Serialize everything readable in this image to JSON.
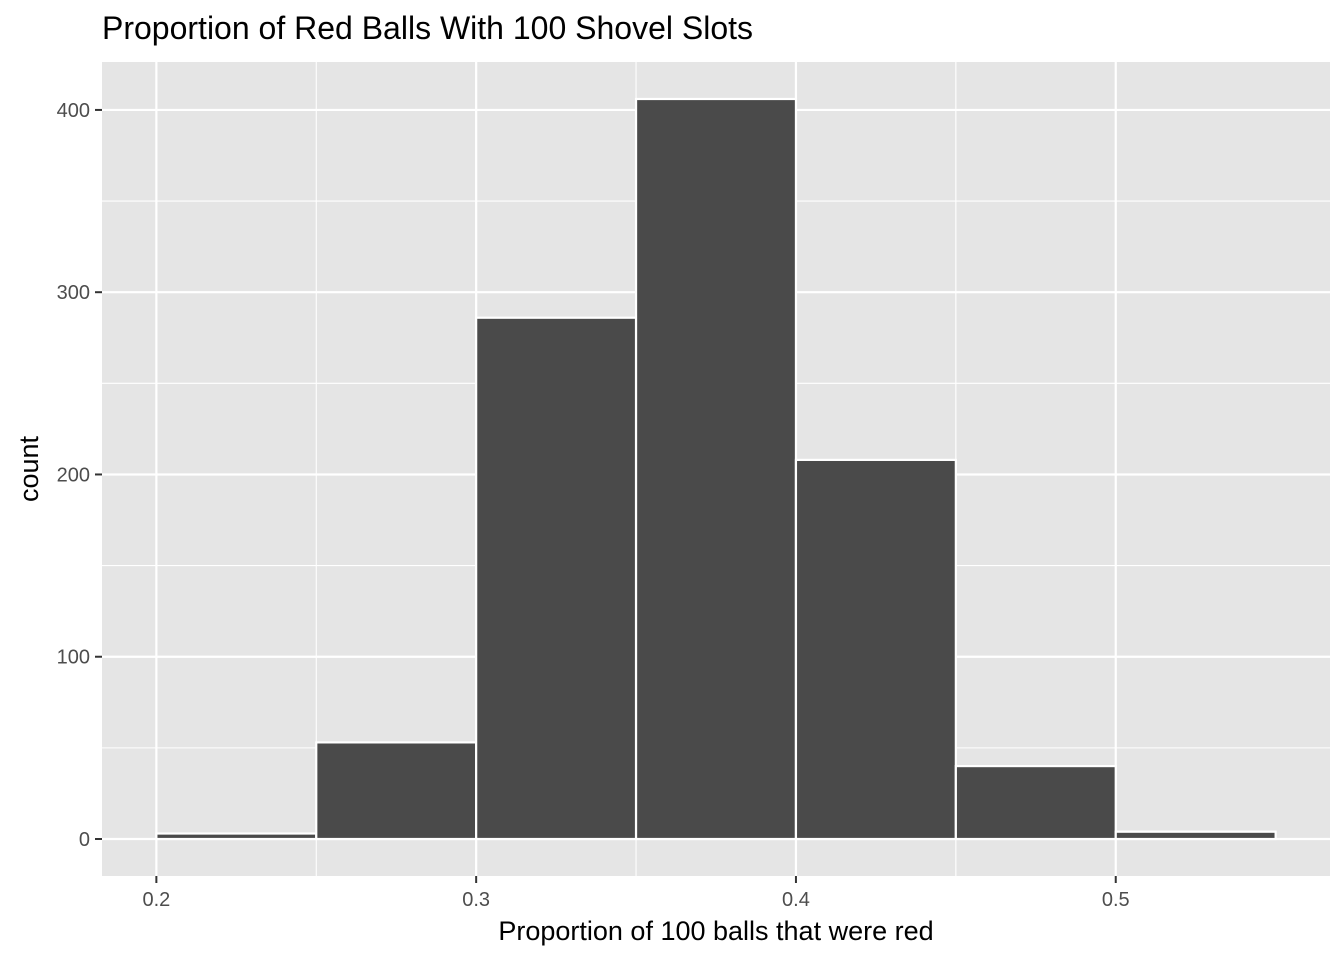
{
  "chart_data": {
    "type": "bar",
    "title": "Proportion of Red Balls With 100 Shovel Slots",
    "xlabel": "Proportion of 100 balls that were red",
    "ylabel": "count",
    "bins": [
      {
        "start": 0.2,
        "end": 0.25,
        "count": 3
      },
      {
        "start": 0.25,
        "end": 0.3,
        "count": 53
      },
      {
        "start": 0.3,
        "end": 0.35,
        "count": 286
      },
      {
        "start": 0.35,
        "end": 0.4,
        "count": 406
      },
      {
        "start": 0.4,
        "end": 0.45,
        "count": 208
      },
      {
        "start": 0.45,
        "end": 0.5,
        "count": 40
      },
      {
        "start": 0.5,
        "end": 0.55,
        "count": 4
      }
    ],
    "xlim": [
      0.183,
      0.567
    ],
    "ylim": [
      -20.3,
      426.3
    ],
    "x_ticks": [
      0.2,
      0.3,
      0.4,
      0.5
    ],
    "x_tick_labels": [
      "0.2",
      "0.3",
      "0.4",
      "0.5"
    ],
    "y_ticks": [
      0,
      100,
      200,
      300,
      400
    ],
    "y_tick_labels": [
      "0",
      "100",
      "200",
      "300",
      "400"
    ],
    "grid": true,
    "legend": "none",
    "colors": {
      "bar_fill": "#4a4a4a",
      "bar_outline": "#ffffff",
      "panel": "#e5e5e5",
      "grid": "#ffffff"
    }
  }
}
